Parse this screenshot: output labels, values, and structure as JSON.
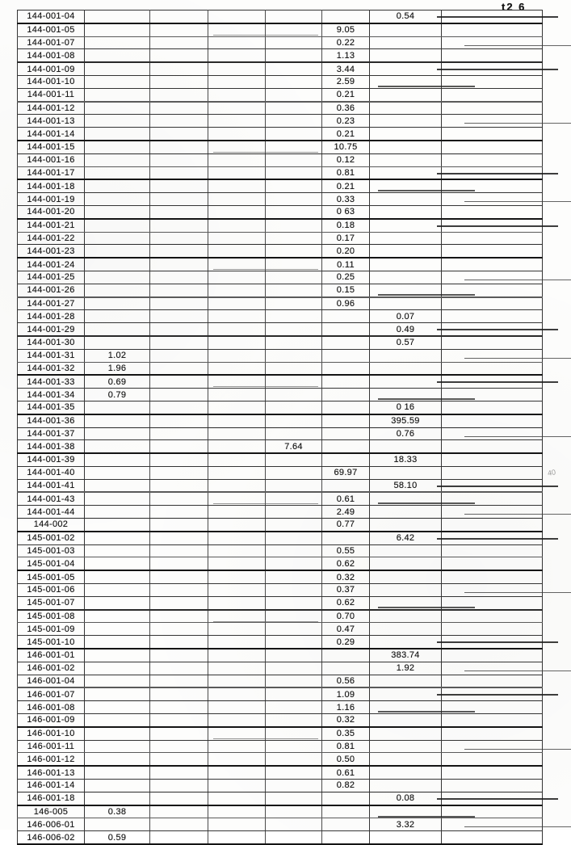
{
  "page": {
    "header_label": "t2 6",
    "side_mark": "40"
  },
  "table": {
    "column_count": 8,
    "rows": [
      [
        "144-001-04",
        "",
        "",
        "",
        "",
        "",
        "0.54",
        ""
      ],
      [
        "144-001-05",
        "",
        "",
        "",
        "",
        "9.05",
        "",
        ""
      ],
      [
        "144-001-07",
        "",
        "",
        "",
        "",
        "0.22",
        "",
        ""
      ],
      [
        "144-001-08",
        "",
        "",
        "",
        "",
        "1.13",
        "",
        ""
      ],
      [
        "144-001-09",
        "",
        "",
        "",
        "",
        "3.44",
        "",
        ""
      ],
      [
        "144-001-10",
        "",
        "",
        "",
        "",
        "2.59",
        "",
        ""
      ],
      [
        "144-001-11",
        "",
        "",
        "",
        "",
        "0.21",
        "",
        ""
      ],
      [
        "144-001-12",
        "",
        "",
        "",
        "",
        "0.36",
        "",
        ""
      ],
      [
        "144-001-13",
        "",
        "",
        "",
        "",
        "0.23",
        "",
        ""
      ],
      [
        "144-001-14",
        "",
        "",
        "",
        "",
        "0.21",
        "",
        ""
      ],
      [
        "144-001-15",
        "",
        "",
        "",
        "",
        "10.75",
        "",
        ""
      ],
      [
        "144-001-16",
        "",
        "",
        "",
        "",
        "0.12",
        "",
        ""
      ],
      [
        "144-001-17",
        "",
        "",
        "",
        "",
        "0.81",
        "",
        ""
      ],
      [
        "144-001-18",
        "",
        "",
        "",
        "",
        "0.21",
        "",
        ""
      ],
      [
        "144-001-19",
        "",
        "",
        "",
        "",
        "0.33",
        "",
        ""
      ],
      [
        "144-001-20",
        "",
        "",
        "",
        "",
        "0 63",
        "",
        ""
      ],
      [
        "144-001-21",
        "",
        "",
        "",
        "",
        "0.18",
        "",
        ""
      ],
      [
        "144-001-22",
        "",
        "",
        "",
        "",
        "0.17",
        "",
        ""
      ],
      [
        "144-001-23",
        "",
        "",
        "",
        "",
        "0.20",
        "",
        ""
      ],
      [
        "144-001-24",
        "",
        "",
        "",
        "",
        "0.11",
        "",
        ""
      ],
      [
        "144-001-25",
        "",
        "",
        "",
        "",
        "0.25",
        "",
        ""
      ],
      [
        "144-001-26",
        "",
        "",
        "",
        "",
        "0.15",
        "",
        ""
      ],
      [
        "144-001-27",
        "",
        "",
        "",
        "",
        "0.96",
        "",
        ""
      ],
      [
        "144-001-28",
        "",
        "",
        "",
        "",
        "",
        "0.07",
        ""
      ],
      [
        "144-001-29",
        "",
        "",
        "",
        "",
        "",
        "0.49",
        ""
      ],
      [
        "144-001-30",
        "",
        "",
        "",
        "",
        "",
        "0.57",
        ""
      ],
      [
        "144-001-31",
        "1.02",
        "",
        "",
        "",
        "",
        "",
        ""
      ],
      [
        "144-001-32",
        "1.96",
        "",
        "",
        "",
        "",
        "",
        ""
      ],
      [
        "144-001-33",
        "0.69",
        "",
        "",
        "",
        "",
        "",
        ""
      ],
      [
        "144-001-34",
        "0.79",
        "",
        "",
        "",
        "",
        "",
        ""
      ],
      [
        "144-001-35",
        "",
        "",
        "",
        "",
        "",
        "0 16",
        ""
      ],
      [
        "144-001-36",
        "",
        "",
        "",
        "",
        "",
        "395.59",
        ""
      ],
      [
        "144-001-37",
        "",
        "",
        "",
        "",
        "",
        "0.76",
        ""
      ],
      [
        "144-001-38",
        "",
        "",
        "",
        "7.64",
        "",
        "",
        ""
      ],
      [
        "144-001-39",
        "",
        "",
        "",
        "",
        "",
        "18.33",
        ""
      ],
      [
        "144-001-40",
        "",
        "",
        "",
        "",
        "69.97",
        "",
        ""
      ],
      [
        "144-001-41",
        "",
        "",
        "",
        "",
        "",
        "58.10",
        ""
      ],
      [
        "144-001-43",
        "",
        "",
        "",
        "",
        "0.61",
        "",
        ""
      ],
      [
        "144-001-44",
        "",
        "",
        "",
        "",
        "2.49",
        "",
        ""
      ],
      [
        "144-002",
        "",
        "",
        "",
        "",
        "0.77",
        "",
        ""
      ],
      [
        "145-001-02",
        "",
        "",
        "",
        "",
        "",
        "6.42",
        ""
      ],
      [
        "145-001-03",
        "",
        "",
        "",
        "",
        "0.55",
        "",
        ""
      ],
      [
        "145-001-04",
        "",
        "",
        "",
        "",
        "0.62",
        "",
        ""
      ],
      [
        "145-001-05",
        "",
        "",
        "",
        "",
        "0.32",
        "",
        ""
      ],
      [
        "145-001-06",
        "",
        "",
        "",
        "",
        "0.37",
        "",
        ""
      ],
      [
        "145-001-07",
        "",
        "",
        "",
        "",
        "0.62",
        "",
        ""
      ],
      [
        "145-001-08",
        "",
        "",
        "",
        "",
        "0.70",
        "",
        ""
      ],
      [
        "145-001-09",
        "",
        "",
        "",
        "",
        "0.47",
        "",
        ""
      ],
      [
        "145-001-10",
        "",
        "",
        "",
        "",
        "0.29",
        "",
        ""
      ],
      [
        "146-001-01",
        "",
        "",
        "",
        "",
        "",
        "383.74",
        ""
      ],
      [
        "146-001-02",
        "",
        "",
        "",
        "",
        "",
        "1.92",
        ""
      ],
      [
        "146-001-04",
        "",
        "",
        "",
        "",
        "0.56",
        "",
        ""
      ],
      [
        "146-001-07",
        "",
        "",
        "",
        "",
        "1.09",
        "",
        ""
      ],
      [
        "146-001-08",
        "",
        "",
        "",
        "",
        "1.16",
        "",
        ""
      ],
      [
        "146-001-09",
        "",
        "",
        "",
        "",
        "0.32",
        "",
        ""
      ],
      [
        "146-001-10",
        "",
        "",
        "",
        "",
        "0.35",
        "",
        ""
      ],
      [
        "146-001-11",
        "",
        "",
        "",
        "",
        "0.81",
        "",
        ""
      ],
      [
        "146-001-12",
        "",
        "",
        "",
        "",
        "0.50",
        "",
        ""
      ],
      [
        "146-001-13",
        "",
        "",
        "",
        "",
        "0.61",
        "",
        ""
      ],
      [
        "146-001-14",
        "",
        "",
        "",
        "",
        "0.82",
        "",
        ""
      ],
      [
        "146-001-18",
        "",
        "",
        "",
        "",
        "",
        "0.08",
        ""
      ],
      [
        "146-005",
        "0.38",
        "",
        "",
        "",
        "",
        "",
        ""
      ],
      [
        "146-006-01",
        "",
        "",
        "",
        "",
        "",
        "3.32",
        ""
      ],
      [
        "146-006-02",
        "0.59",
        "",
        "",
        "",
        "",
        "",
        ""
      ]
    ]
  }
}
